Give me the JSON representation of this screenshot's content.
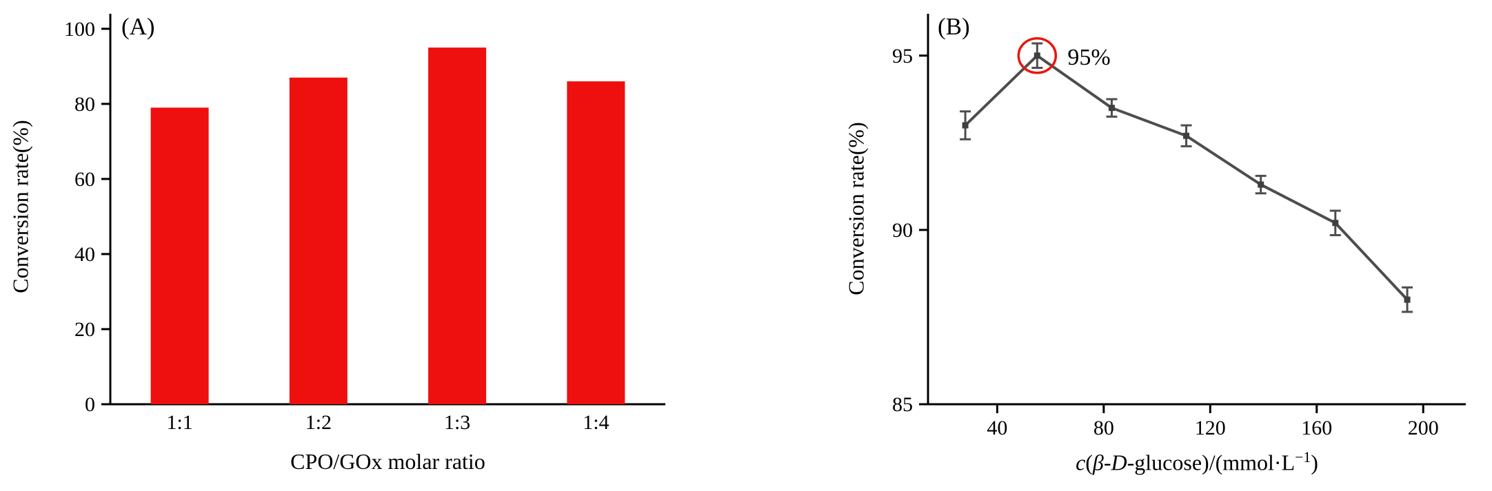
{
  "accent_colors": {
    "bar_red": "#ee0f0f",
    "line_gray": "#4d4d4d",
    "marker_gray": "#3f3f3f",
    "highlight_red": "#e8170d",
    "axis_black": "#000000"
  },
  "chart_data": [
    {
      "type": "bar",
      "panel": "(A)",
      "categories": [
        "1:1",
        "1:2",
        "1:3",
        "1:4"
      ],
      "values": [
        79,
        87,
        95,
        86
      ],
      "xlabel": "CPO/GOx molar ratio",
      "ylabel": "Conversion rate(%)",
      "ylim": [
        0,
        104
      ],
      "yticks": [
        0,
        20,
        40,
        60,
        80,
        100
      ],
      "bar_color": "#ee0f0f",
      "grid": false,
      "legend": "none"
    },
    {
      "type": "line",
      "panel": "(B)",
      "x": [
        28,
        55,
        83,
        111,
        139,
        167,
        194
      ],
      "y": [
        93.0,
        95.0,
        93.5,
        92.7,
        91.3,
        90.2,
        88.0
      ],
      "yerr": [
        0.4,
        0.35,
        0.25,
        0.3,
        0.25,
        0.35,
        0.35
      ],
      "xlabel_plain": "c(β-D-glucose)/(mmol·L⁻¹)",
      "xlabel_parts": [
        {
          "t": "c",
          "i": true
        },
        {
          "t": "("
        },
        {
          "t": "β-D",
          "i": true
        },
        {
          "t": "-glucose)/(mmol·L"
        },
        {
          "t": "−1",
          "sup": true
        },
        {
          "t": ")"
        }
      ],
      "ylabel": "Conversion rate(%)",
      "xlim": [
        14,
        216
      ],
      "ylim": [
        85,
        96.2
      ],
      "xticks": [
        40,
        80,
        120,
        160,
        200
      ],
      "yticks": [
        85,
        90,
        95
      ],
      "line_color": "#4d4d4d",
      "marker_color": "#3f3f3f",
      "annotation": {
        "text": "95%",
        "point_index": 1,
        "circle_color": "#e8170d"
      },
      "grid": false,
      "legend": "none"
    }
  ]
}
